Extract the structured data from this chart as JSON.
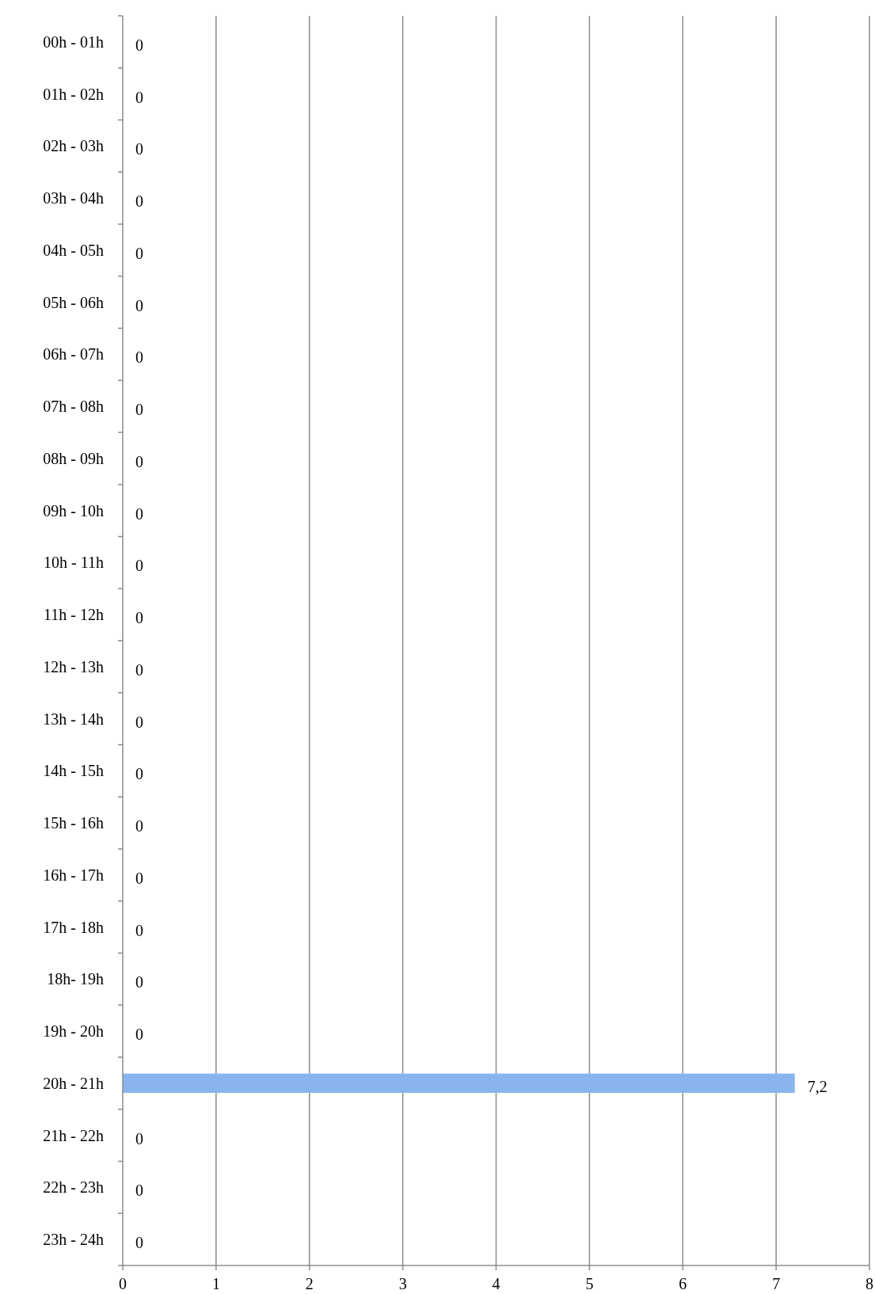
{
  "chart_data": {
    "type": "bar",
    "orientation": "horizontal",
    "categories": [
      "00h - 01h",
      "01h - 02h",
      "02h - 03h",
      "03h - 04h",
      "04h - 05h",
      "05h - 06h",
      "06h - 07h",
      "07h - 08h",
      "08h - 09h",
      "09h - 10h",
      "10h - 11h",
      "11h - 12h",
      "12h - 13h",
      "13h - 14h",
      "14h - 15h",
      "15h - 16h",
      "16h - 17h",
      "17h - 18h",
      "18h- 19h",
      "19h - 20h",
      "20h - 21h",
      "21h - 22h",
      "22h - 23h",
      "23h - 24h"
    ],
    "values": [
      0,
      0,
      0,
      0,
      0,
      0,
      0,
      0,
      0,
      0,
      0,
      0,
      0,
      0,
      0,
      0,
      0,
      0,
      0,
      0,
      7.2,
      0,
      0,
      0
    ],
    "value_labels": [
      "0",
      "0",
      "0",
      "0",
      "0",
      "0",
      "0",
      "0",
      "0",
      "0",
      "0",
      "0",
      "0",
      "0",
      "0",
      "0",
      "0",
      "0",
      "0",
      "0",
      "7,2",
      "0",
      "0",
      "0"
    ],
    "color": "#8ab4ee",
    "xlim": [
      0,
      8
    ],
    "xticks": [
      0,
      1,
      2,
      3,
      4,
      5,
      6,
      7,
      8
    ],
    "grid": "x"
  }
}
